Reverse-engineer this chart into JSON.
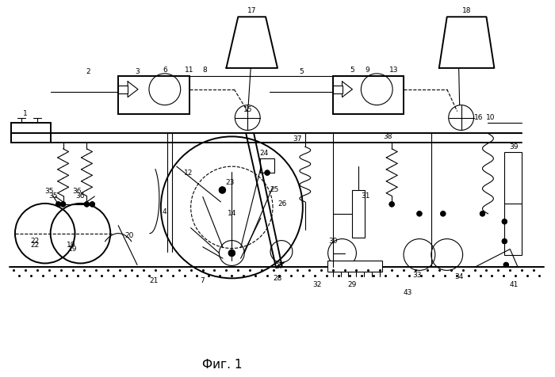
{
  "bg_color": "#ffffff",
  "line_color": "#000000",
  "fig_label": "Фиг. 1",
  "fig_width": 7.0,
  "fig_height": 4.76,
  "dpi": 100
}
